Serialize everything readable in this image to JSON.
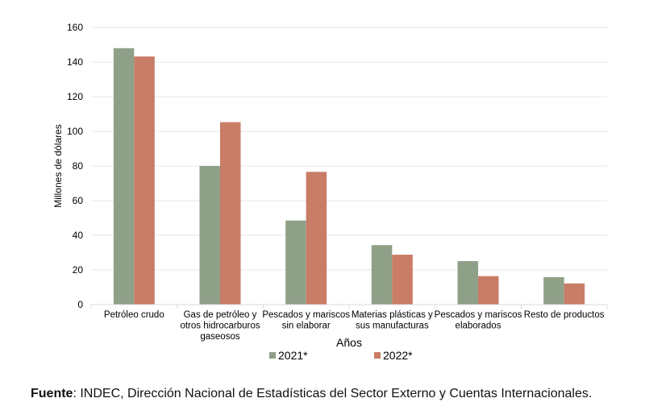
{
  "chart_data": {
    "type": "bar",
    "title": "",
    "xlabel": "Años",
    "ylabel": "Millones de dólares",
    "ylim": [
      0,
      160
    ],
    "yticks": [
      0,
      20,
      40,
      60,
      80,
      100,
      120,
      140,
      160
    ],
    "grid": true,
    "legend_position": "bottom",
    "categories": [
      [
        "Petróleo crudo"
      ],
      [
        "Gas de petróleo y",
        "otros hidrocarburos",
        "gaseosos"
      ],
      [
        "Pescados y mariscos",
        "sin elaborar"
      ],
      [
        "Materias plásticas y",
        "sus manufacturas"
      ],
      [
        "Pescados y mariscos",
        "elaborados"
      ],
      [
        "Resto de productos"
      ]
    ],
    "series": [
      {
        "name": "2021*",
        "color": "#8fa088",
        "values": [
          148,
          80,
          48.5,
          34.3,
          25.1,
          15.8
        ]
      },
      {
        "name": "2022*",
        "color": "#c97c66",
        "values": [
          143.2,
          105.3,
          76.6,
          28.8,
          16.4,
          12.2
        ]
      }
    ]
  },
  "source": {
    "label": "Fuente",
    "text": ": INDEC, Dirección Nacional de Estadísticas del Sector Externo y Cuentas Internacionales."
  }
}
